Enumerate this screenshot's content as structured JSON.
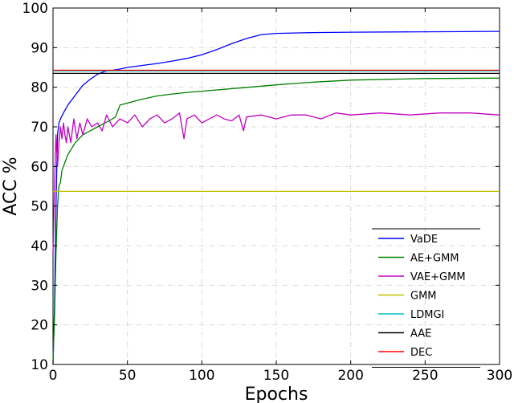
{
  "chart_data": {
    "type": "line",
    "xlabel": "Epochs",
    "ylabel": "ACC %",
    "xlim": [
      0,
      300
    ],
    "ylim": [
      10,
      100
    ],
    "xticks": [
      0,
      50,
      100,
      150,
      200,
      250,
      300
    ],
    "yticks": [
      10,
      20,
      30,
      40,
      50,
      60,
      70,
      80,
      90,
      100
    ],
    "grid": true,
    "legend_position": "lower-right",
    "series": [
      {
        "name": "VaDE",
        "color": "#0000ff",
        "x": [
          0,
          1,
          2,
          3,
          4,
          5,
          7,
          10,
          15,
          20,
          25,
          30,
          35,
          40,
          45,
          50,
          60,
          70,
          80,
          90,
          100,
          110,
          120,
          130,
          140,
          150,
          175,
          200,
          250,
          300
        ],
        "y": [
          10,
          25,
          50,
          68,
          71,
          72,
          73.5,
          75.5,
          78,
          80.5,
          82,
          83.3,
          84,
          84.3,
          84.6,
          85,
          85.5,
          86,
          86.6,
          87.3,
          88.2,
          89.5,
          91,
          92.3,
          93.3,
          93.6,
          93.8,
          93.9,
          94,
          94.1
        ]
      },
      {
        "name": "AE+GMM",
        "color": "#008000",
        "x": [
          0,
          1,
          2,
          3,
          4,
          5,
          6,
          8,
          10,
          15,
          20,
          25,
          30,
          35,
          40,
          42,
          45,
          50,
          60,
          70,
          80,
          90,
          100,
          125,
          150,
          175,
          200,
          250,
          300
        ],
        "y": [
          11,
          22,
          38,
          50,
          55,
          56,
          59,
          61,
          63,
          66,
          68,
          69,
          70,
          71,
          72,
          72.5,
          75.5,
          76,
          77,
          77.8,
          78.3,
          78.7,
          79,
          79.8,
          80.6,
          81.3,
          81.8,
          82.2,
          82.3
        ]
      },
      {
        "name": "VAE+GMM",
        "color": "#bf00bf",
        "x": [
          0,
          1,
          2,
          3,
          4,
          5,
          6,
          7,
          8,
          9,
          10,
          12,
          14,
          16,
          18,
          20,
          23,
          26,
          30,
          33,
          36,
          40,
          45,
          50,
          55,
          60,
          65,
          70,
          75,
          80,
          85,
          88,
          90,
          95,
          100,
          105,
          110,
          115,
          120,
          125,
          128,
          130,
          140,
          150,
          160,
          170,
          180,
          190,
          200,
          220,
          240,
          260,
          280,
          300
        ],
        "y": [
          38,
          55,
          68,
          60,
          66,
          70,
          67,
          71,
          68,
          66,
          70,
          66,
          72,
          67,
          71,
          68,
          72,
          70,
          71,
          69,
          73,
          70,
          72,
          71,
          73,
          70,
          72,
          73,
          71,
          72,
          73.5,
          67,
          72,
          73,
          71,
          72,
          73,
          72,
          71.5,
          73,
          69,
          72.5,
          73,
          72,
          73,
          73,
          72,
          73.5,
          73,
          73.5,
          73,
          73.5,
          73.5,
          73
        ]
      },
      {
        "name": "GMM",
        "color": "#bfbf00",
        "x": [
          0,
          300
        ],
        "y": [
          53.7,
          53.7
        ]
      },
      {
        "name": "LDMGI",
        "color": "#00bfbf",
        "x": [
          0,
          300
        ],
        "y": [
          84.1,
          84.1
        ]
      },
      {
        "name": "AAE",
        "color": "#000000",
        "x": [
          0,
          300
        ],
        "y": [
          83.5,
          83.5
        ]
      },
      {
        "name": "DEC",
        "color": "#ff0000",
        "x": [
          0,
          300
        ],
        "y": [
          84.3,
          84.3
        ]
      }
    ]
  }
}
